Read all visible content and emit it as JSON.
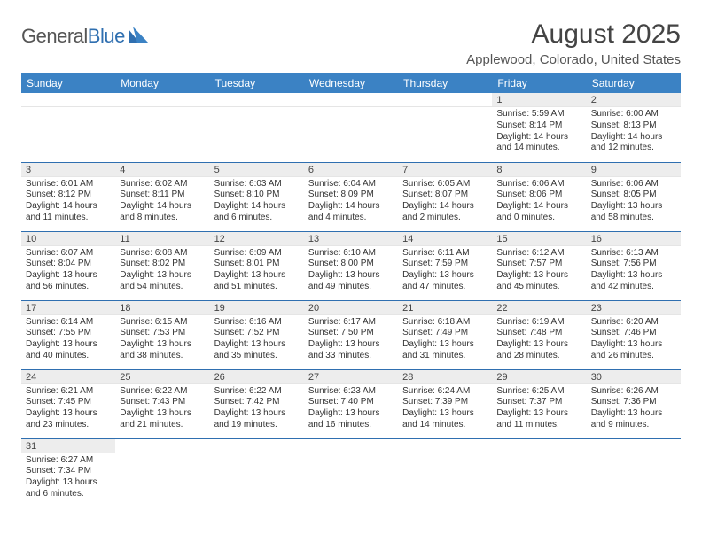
{
  "logo": {
    "text1": "General",
    "text2": "Blue"
  },
  "title": "August 2025",
  "location": "Applewood, Colorado, United States",
  "colors": {
    "header_bg": "#3b82c4",
    "rule": "#2f6fb0",
    "daynum_bg": "#ededed",
    "text": "#444444"
  },
  "day_headers": [
    "Sunday",
    "Monday",
    "Tuesday",
    "Wednesday",
    "Thursday",
    "Friday",
    "Saturday"
  ],
  "weeks": [
    [
      null,
      null,
      null,
      null,
      null,
      {
        "n": "1",
        "sr": "5:59 AM",
        "ss": "8:14 PM",
        "dl": "14 hours and 14 minutes."
      },
      {
        "n": "2",
        "sr": "6:00 AM",
        "ss": "8:13 PM",
        "dl": "14 hours and 12 minutes."
      }
    ],
    [
      {
        "n": "3",
        "sr": "6:01 AM",
        "ss": "8:12 PM",
        "dl": "14 hours and 11 minutes."
      },
      {
        "n": "4",
        "sr": "6:02 AM",
        "ss": "8:11 PM",
        "dl": "14 hours and 8 minutes."
      },
      {
        "n": "5",
        "sr": "6:03 AM",
        "ss": "8:10 PM",
        "dl": "14 hours and 6 minutes."
      },
      {
        "n": "6",
        "sr": "6:04 AM",
        "ss": "8:09 PM",
        "dl": "14 hours and 4 minutes."
      },
      {
        "n": "7",
        "sr": "6:05 AM",
        "ss": "8:07 PM",
        "dl": "14 hours and 2 minutes."
      },
      {
        "n": "8",
        "sr": "6:06 AM",
        "ss": "8:06 PM",
        "dl": "14 hours and 0 minutes."
      },
      {
        "n": "9",
        "sr": "6:06 AM",
        "ss": "8:05 PM",
        "dl": "13 hours and 58 minutes."
      }
    ],
    [
      {
        "n": "10",
        "sr": "6:07 AM",
        "ss": "8:04 PM",
        "dl": "13 hours and 56 minutes."
      },
      {
        "n": "11",
        "sr": "6:08 AM",
        "ss": "8:02 PM",
        "dl": "13 hours and 54 minutes."
      },
      {
        "n": "12",
        "sr": "6:09 AM",
        "ss": "8:01 PM",
        "dl": "13 hours and 51 minutes."
      },
      {
        "n": "13",
        "sr": "6:10 AM",
        "ss": "8:00 PM",
        "dl": "13 hours and 49 minutes."
      },
      {
        "n": "14",
        "sr": "6:11 AM",
        "ss": "7:59 PM",
        "dl": "13 hours and 47 minutes."
      },
      {
        "n": "15",
        "sr": "6:12 AM",
        "ss": "7:57 PM",
        "dl": "13 hours and 45 minutes."
      },
      {
        "n": "16",
        "sr": "6:13 AM",
        "ss": "7:56 PM",
        "dl": "13 hours and 42 minutes."
      }
    ],
    [
      {
        "n": "17",
        "sr": "6:14 AM",
        "ss": "7:55 PM",
        "dl": "13 hours and 40 minutes."
      },
      {
        "n": "18",
        "sr": "6:15 AM",
        "ss": "7:53 PM",
        "dl": "13 hours and 38 minutes."
      },
      {
        "n": "19",
        "sr": "6:16 AM",
        "ss": "7:52 PM",
        "dl": "13 hours and 35 minutes."
      },
      {
        "n": "20",
        "sr": "6:17 AM",
        "ss": "7:50 PM",
        "dl": "13 hours and 33 minutes."
      },
      {
        "n": "21",
        "sr": "6:18 AM",
        "ss": "7:49 PM",
        "dl": "13 hours and 31 minutes."
      },
      {
        "n": "22",
        "sr": "6:19 AM",
        "ss": "7:48 PM",
        "dl": "13 hours and 28 minutes."
      },
      {
        "n": "23",
        "sr": "6:20 AM",
        "ss": "7:46 PM",
        "dl": "13 hours and 26 minutes."
      }
    ],
    [
      {
        "n": "24",
        "sr": "6:21 AM",
        "ss": "7:45 PM",
        "dl": "13 hours and 23 minutes."
      },
      {
        "n": "25",
        "sr": "6:22 AM",
        "ss": "7:43 PM",
        "dl": "13 hours and 21 minutes."
      },
      {
        "n": "26",
        "sr": "6:22 AM",
        "ss": "7:42 PM",
        "dl": "13 hours and 19 minutes."
      },
      {
        "n": "27",
        "sr": "6:23 AM",
        "ss": "7:40 PM",
        "dl": "13 hours and 16 minutes."
      },
      {
        "n": "28",
        "sr": "6:24 AM",
        "ss": "7:39 PM",
        "dl": "13 hours and 14 minutes."
      },
      {
        "n": "29",
        "sr": "6:25 AM",
        "ss": "7:37 PM",
        "dl": "13 hours and 11 minutes."
      },
      {
        "n": "30",
        "sr": "6:26 AM",
        "ss": "7:36 PM",
        "dl": "13 hours and 9 minutes."
      }
    ],
    [
      {
        "n": "31",
        "sr": "6:27 AM",
        "ss": "7:34 PM",
        "dl": "13 hours and 6 minutes."
      },
      null,
      null,
      null,
      null,
      null,
      null
    ]
  ],
  "labels": {
    "sunrise": "Sunrise:",
    "sunset": "Sunset:",
    "daylight": "Daylight:"
  }
}
